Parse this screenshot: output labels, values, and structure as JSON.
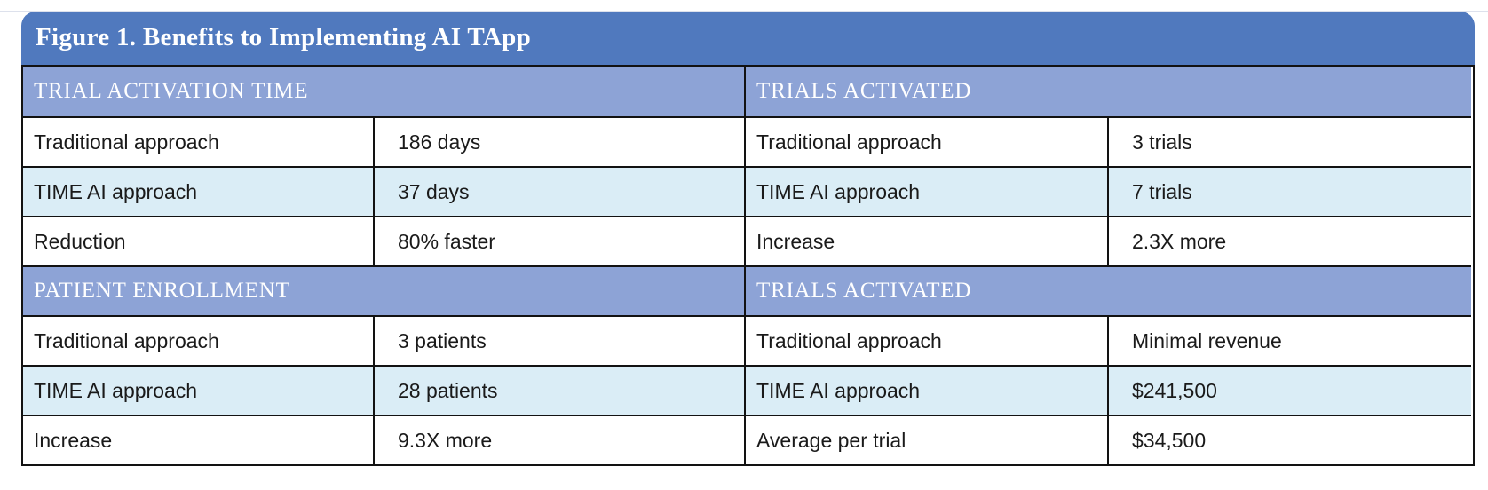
{
  "figure": {
    "title": "Figure 1. Benefits to Implementing AI TApp",
    "colors": {
      "title_bar": "#5079BE",
      "section_header": "#8DA3D6",
      "row_highlight": "#DAEDF6",
      "border": "#121212",
      "header_text": "#FFFFFF",
      "body_text": "#1A1A1A"
    },
    "sections": [
      {
        "header": "TRIAL ACTIVATION TIME",
        "rows": [
          {
            "label": "Traditional approach",
            "value": "186 days"
          },
          {
            "label": "TIME AI approach",
            "value": "37 days"
          },
          {
            "label": "Reduction",
            "value": "80% faster"
          }
        ]
      },
      {
        "header": "TRIALS ACTIVATED",
        "rows": [
          {
            "label": "Traditional approach",
            "value": "3 trials"
          },
          {
            "label": "TIME AI approach",
            "value": "7 trials"
          },
          {
            "label": "Increase",
            "value": "2.3X more"
          }
        ]
      },
      {
        "header": "PATIENT ENROLLMENT",
        "rows": [
          {
            "label": "Traditional approach",
            "value": "3 patients"
          },
          {
            "label": "TIME AI approach",
            "value": "28 patients"
          },
          {
            "label": "Increase",
            "value": "9.3X more"
          }
        ]
      },
      {
        "header": "TRIALS ACTIVATED",
        "rows": [
          {
            "label": "Traditional approach",
            "value": "Minimal revenue"
          },
          {
            "label": "TIME AI approach",
            "value": "$241,500"
          },
          {
            "label": "Average per trial",
            "value": "$34,500"
          }
        ]
      }
    ]
  }
}
